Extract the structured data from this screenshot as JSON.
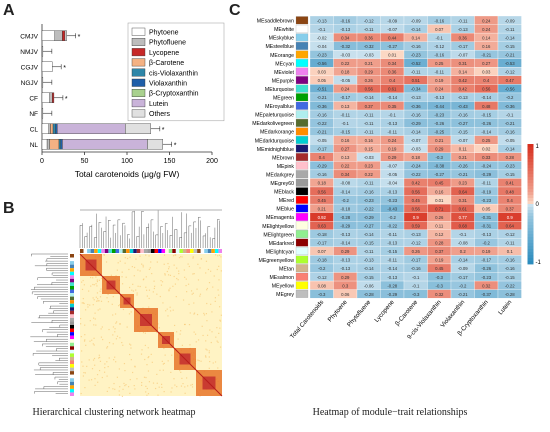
{
  "panels": {
    "a": {
      "letter": "A"
    },
    "b": {
      "letter": "B",
      "caption": "Hierarchical clustering network heatmap"
    },
    "c": {
      "letter": "C",
      "caption": "Heatmap of module−trait relationships"
    }
  },
  "colors": {
    "Phytoene": "#ffffff",
    "Phytofluene": "#bdbdbd",
    "Lycopene": "#c62828",
    "beta-Carotene": "#f4b183",
    "cis-Violaxanthin": "#2e86a8",
    "Violaxanthin": "#1f5ea8",
    "beta-Cryptoxanthin": "#a9d18e",
    "Lutein": "#c9b3d9",
    "Others": "#e0e0e0",
    "heat_pos": "#d7301f",
    "heat_neg": "#2b8cbe"
  },
  "chart_data": [
    {
      "type": "bar",
      "orientation": "horizontal",
      "stacked": true,
      "categories": [
        "CMJV",
        "NMJV",
        "CGJV",
        "NGJV",
        "CF",
        "NF",
        "CL",
        "NL"
      ],
      "xlabel": "Total carotenoids (μg/g FW)",
      "xlim": [
        0,
        200
      ],
      "xticks": [
        0,
        50,
        100,
        150,
        200
      ],
      "legend_position": "right",
      "series": [
        {
          "name": "Phytoene",
          "values": [
            15,
            1,
            12,
            1,
            9,
            1,
            8,
            6
          ]
        },
        {
          "name": "Phytofluene",
          "values": [
            9,
            0,
            0,
            0,
            3,
            0,
            2,
            3
          ]
        },
        {
          "name": "Lycopene",
          "values": [
            3,
            0,
            0,
            0,
            2,
            0,
            0,
            0
          ]
        },
        {
          "name": "β-Carotene",
          "values": [
            0,
            0,
            0,
            0,
            0,
            0,
            3,
            11
          ]
        },
        {
          "name": "cis-Violaxanthin",
          "values": [
            0,
            0,
            0,
            0,
            0,
            0,
            3,
            2
          ]
        },
        {
          "name": "Violaxanthin",
          "values": [
            0,
            0,
            0,
            0,
            0,
            0,
            2,
            2
          ]
        },
        {
          "name": "β-Cryptoxanthin",
          "values": [
            0,
            0,
            0,
            0,
            0,
            0,
            0,
            0
          ]
        },
        {
          "name": "Lutein",
          "values": [
            0,
            0,
            0,
            0,
            0,
            0,
            80,
            100
          ]
        },
        {
          "name": "Others",
          "values": [
            2,
            0,
            0,
            0,
            0,
            0,
            30,
            18
          ]
        }
      ],
      "annotations": [
        "*",
        "",
        "*",
        "",
        "*",
        "",
        "*",
        "*"
      ]
    },
    {
      "type": "heatmap",
      "rows": [
        "MEsaddlebrown",
        "MEwhite",
        "MEskyblue",
        "MEsteelblue",
        "MEorange",
        "MEcyan",
        "MEviolet",
        "MEpurple",
        "MEturquoise",
        "MEgreen",
        "MEroyalblue",
        "MEpaleturquoise",
        "MEdarkolivegreen",
        "MEdarkorange",
        "MEdarkturquoise",
        "MEmidnightblue",
        "MEbrown",
        "MEpink",
        "MEdarkgrey",
        "MEgrey60",
        "MEblack",
        "MEred",
        "MEblue",
        "MEmagenta",
        "MElightyellow",
        "MElightgreen",
        "MEdarkred",
        "MElightcyan",
        "MEgreenyellow",
        "MEtan",
        "MEsalmon",
        "MEyellow",
        "MEgrey"
      ],
      "row_colors": [
        "#8b4513",
        "#ffffff",
        "#87ceeb",
        "#4682b4",
        "#ffa500",
        "#00ffff",
        "#ee82ee",
        "#800080",
        "#40e0d0",
        "#00a000",
        "#4169e1",
        "#afeeee",
        "#556b2f",
        "#ff8c00",
        "#00ced1",
        "#191970",
        "#a52a2a",
        "#ffc0cb",
        "#a9a9a9",
        "#999999",
        "#000000",
        "#ff0000",
        "#0000ff",
        "#ff00ff",
        "#ffffe0",
        "#90ee90",
        "#8b0000",
        "#e0ffff",
        "#adff2f",
        "#d2b48c",
        "#fa8072",
        "#ffff00",
        "#bebebe"
      ],
      "columns": [
        "Total Carotenoids",
        "Phytoene",
        "Phytofluene",
        "Lycopene",
        "β-Carotene",
        "9-cis-Violaxanthin",
        "Violaxanthin",
        "β-Cryptoxanthin",
        "Lutein"
      ],
      "values": [
        [
          -0.13,
          -0.16,
          -0.12,
          -0.09,
          -0.09,
          -0.16,
          -0.11,
          0.24,
          -0.09
        ],
        [
          -0.1,
          -0.13,
          -0.11,
          -0.07,
          -0.14,
          0.07,
          -0.13,
          0.24,
          -0.11
        ],
        [
          -0.02,
          0.34,
          0.36,
          0.44,
          0.14,
          -0.1,
          0.36,
          0.14,
          -0.14
        ],
        [
          -0.04,
          -0.32,
          -0.32,
          -0.27,
          -0.16,
          -0.12,
          -0.17,
          0.16,
          -0.15
        ],
        [
          -0.23,
          -0.03,
          -0.03,
          0.01,
          -0.23,
          -0.16,
          -0.07,
          -0.21,
          -0.21
        ],
        [
          -0.56,
          0.22,
          0.21,
          0.34,
          -0.52,
          0.25,
          0.31,
          0.27,
          -0.53
        ],
        [
          0.03,
          0.18,
          0.29,
          0.36,
          -0.11,
          -0.11,
          0.14,
          0.03,
          -0.12
        ],
        [
          0.05,
          -0.05,
          0.26,
          0.4,
          0.51,
          0.19,
          0.42,
          0.4,
          0.47
        ],
        [
          -0.51,
          0.24,
          0.56,
          0.61,
          -0.34,
          0.24,
          0.42,
          0.56,
          -0.56
        ],
        [
          -0.21,
          -0.17,
          -0.14,
          -0.14,
          -0.13,
          -0.13,
          -0.13,
          -0.14,
          -0.2
        ],
        [
          -0.36,
          0.13,
          0.37,
          0.35,
          -0.36,
          -0.44,
          -0.43,
          0.48,
          -0.36
        ],
        [
          -0.16,
          -0.11,
          -0.11,
          -0.1,
          -0.16,
          -0.23,
          -0.16,
          -0.15,
          -0.1
        ],
        [
          -0.22,
          -0.1,
          -0.11,
          -0.13,
          -0.29,
          -0.26,
          -0.27,
          -0.26,
          -0.21
        ],
        [
          -0.21,
          -0.15,
          -0.11,
          -0.11,
          -0.14,
          -0.25,
          -0.15,
          -0.14,
          -0.16
        ],
        [
          -0.05,
          0.16,
          0.16,
          0.24,
          -0.07,
          0.21,
          -0.07,
          0.25,
          -0.05
        ],
        [
          -0.17,
          0.27,
          0.15,
          0.19,
          -0.03,
          0.29,
          0.11,
          0.02,
          -0.14
        ],
        [
          0.4,
          0.13,
          -0.03,
          0.29,
          0.18,
          -0.3,
          0.21,
          0.33,
          0.28
        ],
        [
          -0.29,
          0.22,
          0.23,
          -0.07,
          -0.24,
          -0.38,
          -0.26,
          -0.24,
          -0.23
        ],
        [
          -0.16,
          0.34,
          0.22,
          -0.05,
          -0.22,
          -0.27,
          -0.21,
          -0.29,
          -0.15
        ],
        [
          0.18,
          -0.08,
          -0.11,
          -0.04,
          0.42,
          0.45,
          0.23,
          -0.11,
          0.41
        ],
        [
          0.56,
          -0.14,
          -0.16,
          -0.13,
          0.56,
          0.16,
          0.64,
          -0.19,
          0.48
        ],
        [
          0.45,
          -0.2,
          -0.23,
          -0.23,
          0.45,
          0.01,
          0.31,
          -0.23,
          0.4
        ],
        [
          0.21,
          -0.18,
          -0.22,
          -0.43,
          0.56,
          0.71,
          0.61,
          0.05,
          0.37
        ],
        [
          0.92,
          -0.28,
          -0.29,
          -0.2,
          0.9,
          0.26,
          0.77,
          -0.31,
          0.9
        ],
        [
          0.63,
          -0.29,
          -0.27,
          -0.22,
          0.59,
          0.11,
          0.68,
          -0.31,
          0.64
        ],
        [
          -0.18,
          -0.13,
          -0.14,
          -0.11,
          -0.13,
          0.12,
          -0.1,
          -0.13,
          -0.12
        ],
        [
          -0.17,
          -0.14,
          -0.15,
          -0.13,
          -0.12,
          0.28,
          -0.08,
          -0.2,
          -0.11
        ],
        [
          0.07,
          0.29,
          -0.11,
          -0.15,
          0.26,
          0.37,
          0.2,
          0.19,
          0.1
        ],
        [
          -0.18,
          -0.13,
          -0.13,
          -0.11,
          -0.17,
          0.19,
          -0.14,
          -0.17,
          -0.16
        ],
        [
          -0.2,
          -0.13,
          -0.14,
          -0.14,
          -0.16,
          0.45,
          -0.09,
          -0.26,
          -0.16
        ],
        [
          -0.12,
          0.29,
          -0.15,
          -0.13,
          -0.1,
          -0.3,
          -0.17,
          -0.23,
          -0.15
        ],
        [
          0.08,
          0.3,
          -0.06,
          -0.28,
          -0.1,
          -0.3,
          -0.2,
          0.32,
          -0.22
        ],
        [
          -0.3,
          0.06,
          -0.28,
          -0.29,
          -0.3,
          0.32,
          -0.21,
          -0.37,
          -0.28
        ]
      ],
      "colorbar_range": [
        -1,
        1
      ],
      "colorbar_ticks": [
        "1",
        "0",
        "-1"
      ]
    }
  ]
}
